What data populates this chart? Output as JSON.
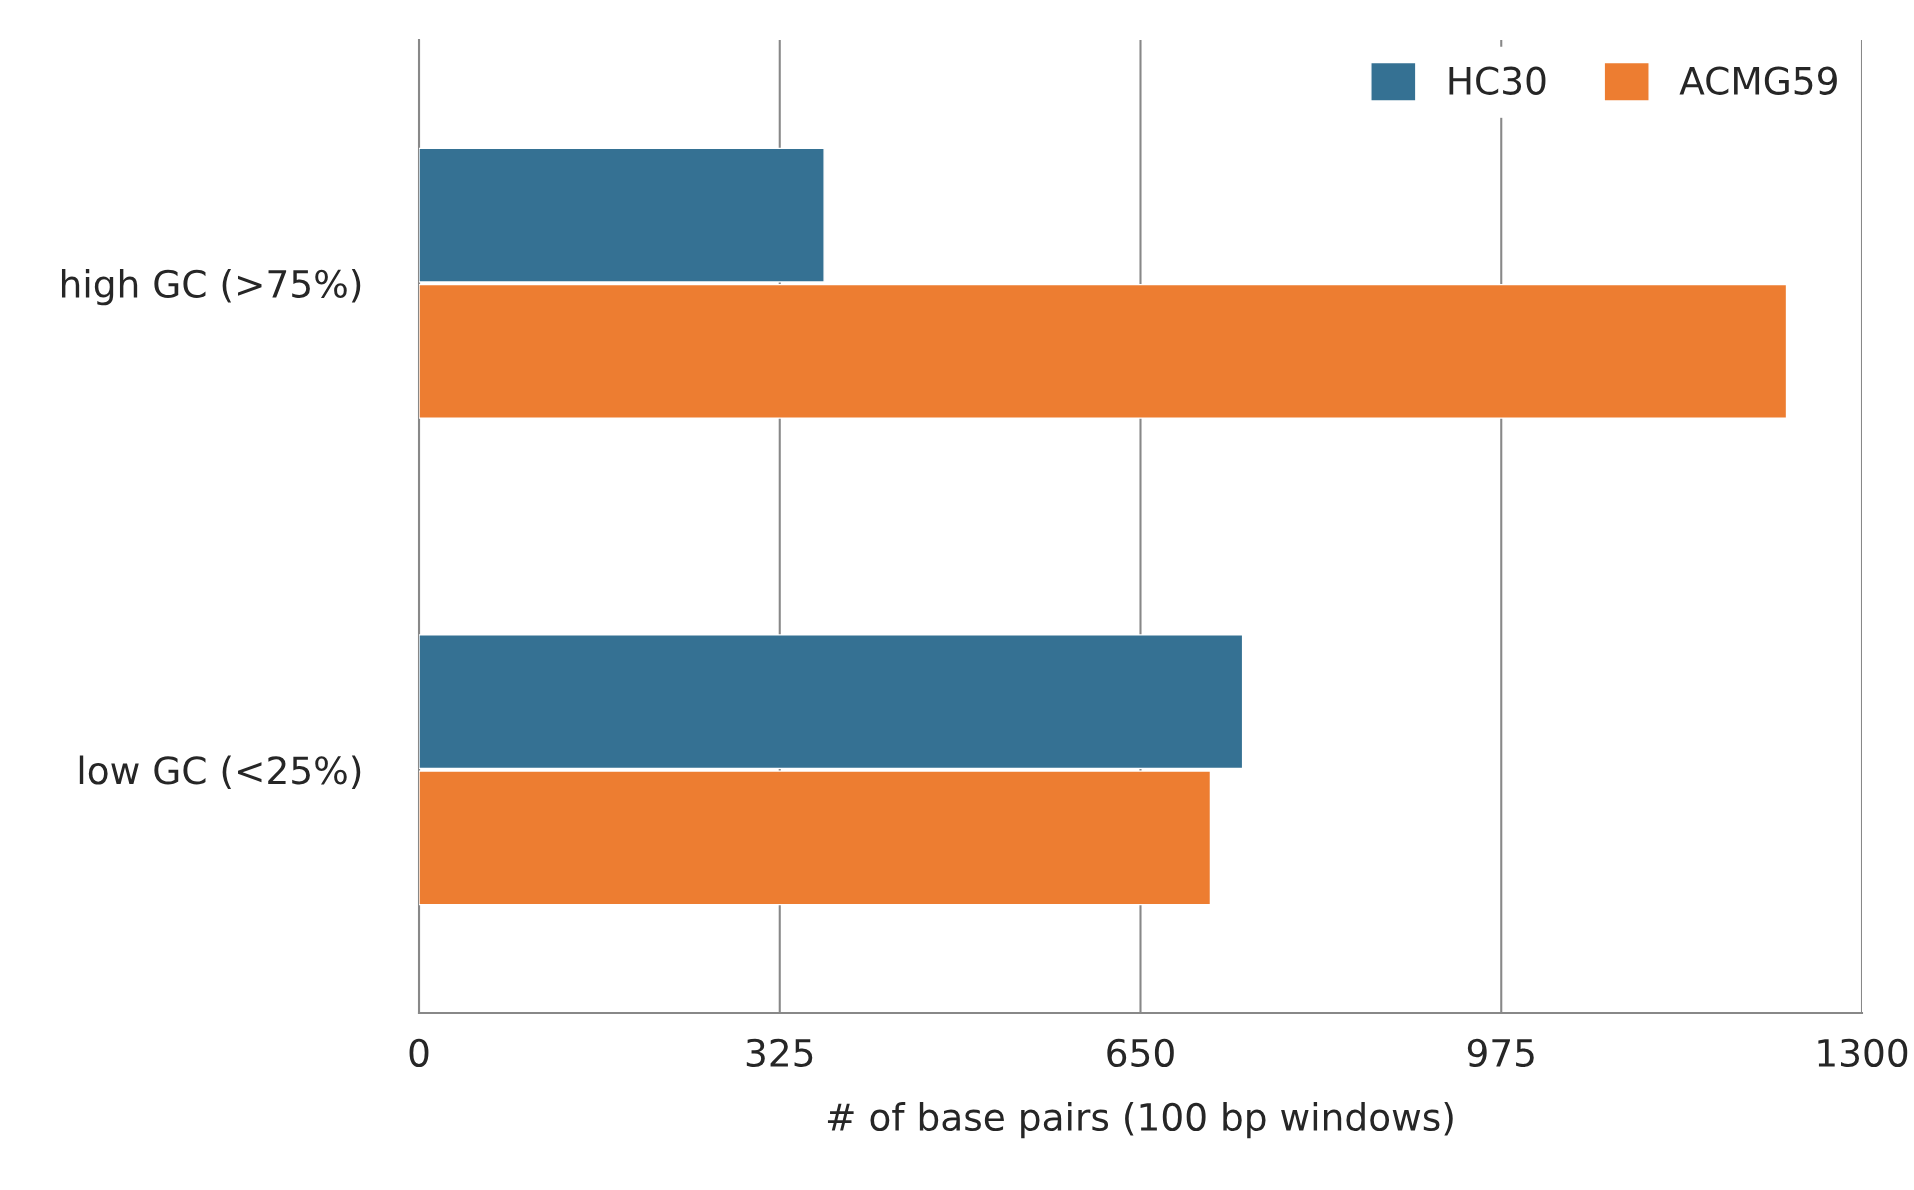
{
  "chart_data": {
    "type": "bar",
    "orientation": "horizontal",
    "xlabel": "# of base pairs (100 bp windows)",
    "categories": [
      "high GC (>75%)",
      "low GC (<25%)"
    ],
    "series": [
      {
        "name": "HC30",
        "color": "#357193",
        "values": [
          365,
          742
        ]
      },
      {
        "name": "ACMG59",
        "color": "#ed7d31",
        "values": [
          1232,
          713
        ]
      }
    ],
    "xlim": [
      0,
      1300
    ],
    "xticks": [
      0,
      325,
      650,
      975,
      1300
    ],
    "grid": "x",
    "legend": "top right"
  }
}
